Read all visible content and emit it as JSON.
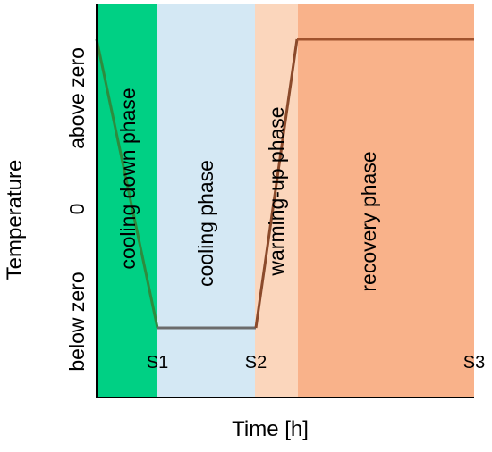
{
  "chart_data": {
    "type": "line",
    "xlabel": "Time [h]",
    "ylabel": "Temperature",
    "y_tick_labels": [
      "below zero",
      "0",
      "above zero"
    ],
    "x_tick_labels": [
      "S1",
      "S2",
      "S3"
    ],
    "phases": [
      {
        "label": "cooling down phase",
        "color": "#00D084"
      },
      {
        "label": "cooling phase",
        "color": "#D4E8F4"
      },
      {
        "label": "warming-up phase",
        "color": "#FBD6BC"
      },
      {
        "label": "recovery phase",
        "color": "#F9B28A"
      }
    ],
    "series": [
      {
        "segment": "cooling down",
        "color": "#2E8B3E",
        "points": [
          [
            "start",
            "above zero"
          ],
          [
            "S1",
            "below zero"
          ]
        ]
      },
      {
        "segment": "cooling",
        "color": "#6B6B6B",
        "points": [
          [
            "S1",
            "below zero"
          ],
          [
            "S2",
            "below zero"
          ]
        ]
      },
      {
        "segment": "warming-up",
        "color": "#A0522D",
        "points": [
          [
            "S2",
            "below zero"
          ],
          [
            "warming-up end",
            "above zero"
          ]
        ]
      },
      {
        "segment": "recovery",
        "color": "#A0522D",
        "points": [
          [
            "warming-up end",
            "above zero"
          ],
          [
            "S3",
            "above zero"
          ]
        ]
      }
    ],
    "grid": false,
    "legend": "none"
  }
}
